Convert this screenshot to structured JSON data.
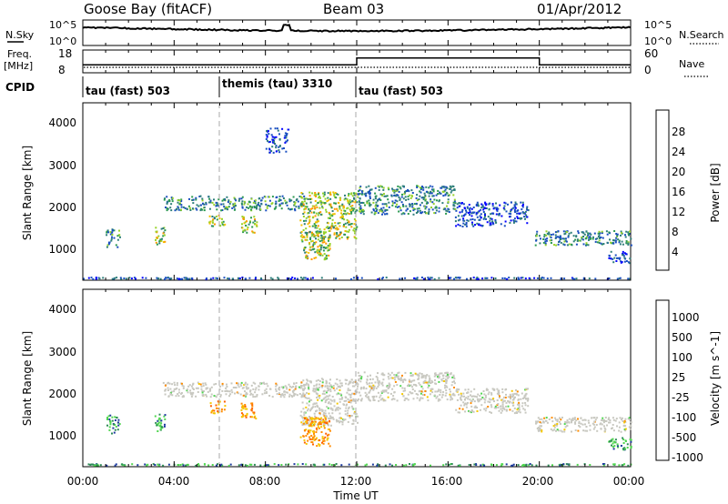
{
  "header": {
    "station": "Goose Bay (fitACF)",
    "beam": "Beam 03",
    "date": "01/Apr/2012"
  },
  "noise_panel": {
    "left_label": "N.Sky",
    "right_label": "N.Search",
    "left_ticks": [
      "10^5",
      "10^0"
    ],
    "right_ticks": [
      "10^5",
      "10^0"
    ]
  },
  "freq_panel": {
    "left_label_line1": "Freq.",
    "left_label_line2": "[MHz]",
    "right_label": "Nave",
    "left_ticks": [
      "18",
      "8"
    ],
    "right_ticks": [
      "60",
      "0"
    ]
  },
  "cpid_panel": {
    "label": "CPID",
    "modes": [
      {
        "name": "tau (fast) 503",
        "start_hour": 0,
        "end_hour": 6
      },
      {
        "name": "themis (tau) 3310",
        "start_hour": 6,
        "end_hour": 12
      },
      {
        "name": "tau (fast) 503",
        "start_hour": 12,
        "end_hour": 24
      }
    ]
  },
  "power_panel": {
    "ylabel": "Slant Range [km]",
    "colorbar_label": "Power [dB]",
    "colorbar_ticks": [
      "28",
      "24",
      "20",
      "16",
      "12",
      "8",
      "4"
    ],
    "colorbar_colors": [
      "#ff0000",
      "#ff6000",
      "#ff9a00",
      "#f2c000",
      "#96d22a",
      "#2c9a50",
      "#2e7e7a",
      "#1a4fc0",
      "#0000ff"
    ],
    "y_ticks": [
      "4000",
      "3000",
      "2000",
      "1000"
    ]
  },
  "velocity_panel": {
    "ylabel": "Slant Range [km]",
    "colorbar_label": "Velocity [m s^-1]",
    "colorbar_ticks": [
      "1000",
      "500",
      "100",
      "25",
      "-25",
      "-100",
      "-500",
      "-1000"
    ],
    "colorbar_colors": [
      "#0000ff",
      "#1d3a9e",
      "#2e8b57",
      "#4fd64f",
      "#c8c8c0",
      "#f5c800",
      "#ff8c00",
      "#ff6000",
      "#ff0000"
    ],
    "y_ticks": [
      "4000",
      "3000",
      "2000",
      "1000"
    ]
  },
  "x_axis": {
    "label": "Time UT",
    "ticks": [
      "00:00",
      "04:00",
      "08:00",
      "12:00",
      "16:00",
      "20:00",
      "00:00"
    ]
  },
  "chart_data": {
    "type": "heatmap",
    "x_range_hours": [
      0,
      24
    ],
    "y_range_km": [
      180,
      4500
    ],
    "mode_change_hours": [
      6,
      12
    ],
    "frequency": {
      "left_axis_range_mhz": [
        8,
        18
      ],
      "right_axis_range_nave": [
        0,
        60
      ],
      "segments": [
        {
          "start_hour": 0,
          "end_hour": 12,
          "freq_mhz": 11.5
        },
        {
          "start_hour": 12,
          "end_hour": 20,
          "freq_mhz": 14.5
        },
        {
          "start_hour": 20,
          "end_hour": 24,
          "freq_mhz": 11.5
        }
      ]
    },
    "power_regions": [
      {
        "t0": 1.0,
        "t1": 1.6,
        "r0": 1000,
        "r1": 1450,
        "level": "mid"
      },
      {
        "t0": 3.1,
        "t1": 3.6,
        "r0": 1050,
        "r1": 1500,
        "level": "high"
      },
      {
        "t0": 3.5,
        "t1": 9.7,
        "r0": 1900,
        "r1": 2250,
        "level": "mid"
      },
      {
        "t0": 5.5,
        "t1": 6.2,
        "r0": 1500,
        "r1": 1800,
        "level": "high"
      },
      {
        "t0": 6.9,
        "t1": 7.6,
        "r0": 1350,
        "r1": 1750,
        "level": "high"
      },
      {
        "t0": 8.0,
        "t1": 9.0,
        "r0": 3300,
        "r1": 3900,
        "level": "low"
      },
      {
        "t0": 9.5,
        "t1": 12.0,
        "r0": 1200,
        "r1": 2350,
        "level": "high"
      },
      {
        "t0": 9.5,
        "t1": 10.8,
        "r0": 700,
        "r1": 1400,
        "level": "high"
      },
      {
        "t0": 12.0,
        "t1": 16.3,
        "r0": 1800,
        "r1": 2500,
        "level": "mid"
      },
      {
        "t0": 16.3,
        "t1": 19.5,
        "r0": 1500,
        "r1": 2100,
        "level": "low"
      },
      {
        "t0": 19.8,
        "t1": 24.0,
        "r0": 1050,
        "r1": 1400,
        "level": "mid"
      },
      {
        "t0": 23.0,
        "t1": 24.0,
        "r0": 600,
        "r1": 900,
        "level": "low"
      }
    ],
    "velocity_regions": [
      {
        "t0": 1.0,
        "t1": 1.6,
        "r0": 1000,
        "r1": 1450,
        "vel": "positive"
      },
      {
        "t0": 3.1,
        "t1": 3.6,
        "r0": 1050,
        "r1": 1500,
        "vel": "positive"
      },
      {
        "t0": 3.5,
        "t1": 9.7,
        "r0": 1900,
        "r1": 2250,
        "vel": "near-zero"
      },
      {
        "t0": 5.5,
        "t1": 6.2,
        "r0": 1500,
        "r1": 1800,
        "vel": "negative"
      },
      {
        "t0": 6.9,
        "t1": 7.6,
        "r0": 1350,
        "r1": 1750,
        "vel": "negative"
      },
      {
        "t0": 9.5,
        "t1": 12.0,
        "r0": 1200,
        "r1": 2350,
        "vel": "near-zero"
      },
      {
        "t0": 9.5,
        "t1": 10.8,
        "r0": 700,
        "r1": 1400,
        "vel": "negative"
      },
      {
        "t0": 12.0,
        "t1": 16.3,
        "r0": 1800,
        "r1": 2500,
        "vel": "near-zero"
      },
      {
        "t0": 16.3,
        "t1": 19.5,
        "r0": 1500,
        "r1": 2100,
        "vel": "near-zero"
      },
      {
        "t0": 19.8,
        "t1": 24.0,
        "r0": 1050,
        "r1": 1400,
        "vel": "near-zero"
      },
      {
        "t0": 23.0,
        "t1": 24.0,
        "r0": 600,
        "r1": 900,
        "vel": "positive"
      }
    ]
  }
}
